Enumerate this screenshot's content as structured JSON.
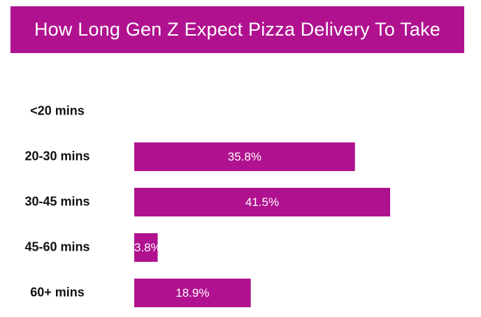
{
  "chart_data": {
    "type": "bar",
    "orientation": "horizontal",
    "title": "How Long Gen Z Expect Pizza Delivery To Take",
    "categories": [
      "<20 mins",
      "20-30 mins",
      "30-45 mins",
      "45-60 mins",
      "60+ mins"
    ],
    "values": [
      0,
      35.8,
      41.5,
      3.8,
      18.9
    ],
    "value_labels": [
      "",
      "35.8%",
      "41.5%",
      "3.8%",
      "18.9%"
    ],
    "xlim": [
      0,
      41.5
    ],
    "grid": false,
    "legend": "none",
    "bar_color": "#b0128f"
  }
}
